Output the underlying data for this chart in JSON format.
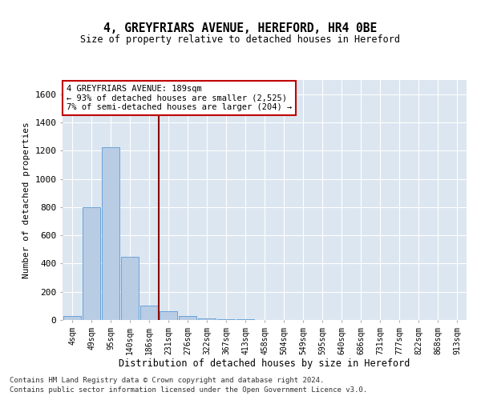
{
  "title": "4, GREYFRIARS AVENUE, HEREFORD, HR4 0BE",
  "subtitle": "Size of property relative to detached houses in Hereford",
  "xlabel": "Distribution of detached houses by size in Hereford",
  "ylabel": "Number of detached properties",
  "footnote1": "Contains HM Land Registry data © Crown copyright and database right 2024.",
  "footnote2": "Contains public sector information licensed under the Open Government Licence v3.0.",
  "bin_labels": [
    "4sqm",
    "49sqm",
    "95sqm",
    "140sqm",
    "186sqm",
    "231sqm",
    "276sqm",
    "322sqm",
    "367sqm",
    "413sqm",
    "458sqm",
    "504sqm",
    "549sqm",
    "595sqm",
    "640sqm",
    "686sqm",
    "731sqm",
    "777sqm",
    "822sqm",
    "868sqm",
    "913sqm"
  ],
  "bar_values": [
    30,
    800,
    1225,
    450,
    100,
    65,
    30,
    10,
    8,
    5,
    0,
    0,
    0,
    0,
    0,
    0,
    0,
    0,
    0,
    0,
    0
  ],
  "bar_color": "#b8cce4",
  "bar_edge_color": "#5b9bd5",
  "background_color": "#dce6f1",
  "grid_color": "#ffffff",
  "red_line_index": 4,
  "red_line_color": "#8b0000",
  "annotation_text": "4 GREYFRIARS AVENUE: 189sqm\n← 93% of detached houses are smaller (2,525)\n7% of semi-detached houses are larger (204) →",
  "annotation_box_color": "#c00000",
  "ylim": [
    0,
    1700
  ],
  "yticks": [
    0,
    200,
    400,
    600,
    800,
    1000,
    1200,
    1400,
    1600
  ]
}
